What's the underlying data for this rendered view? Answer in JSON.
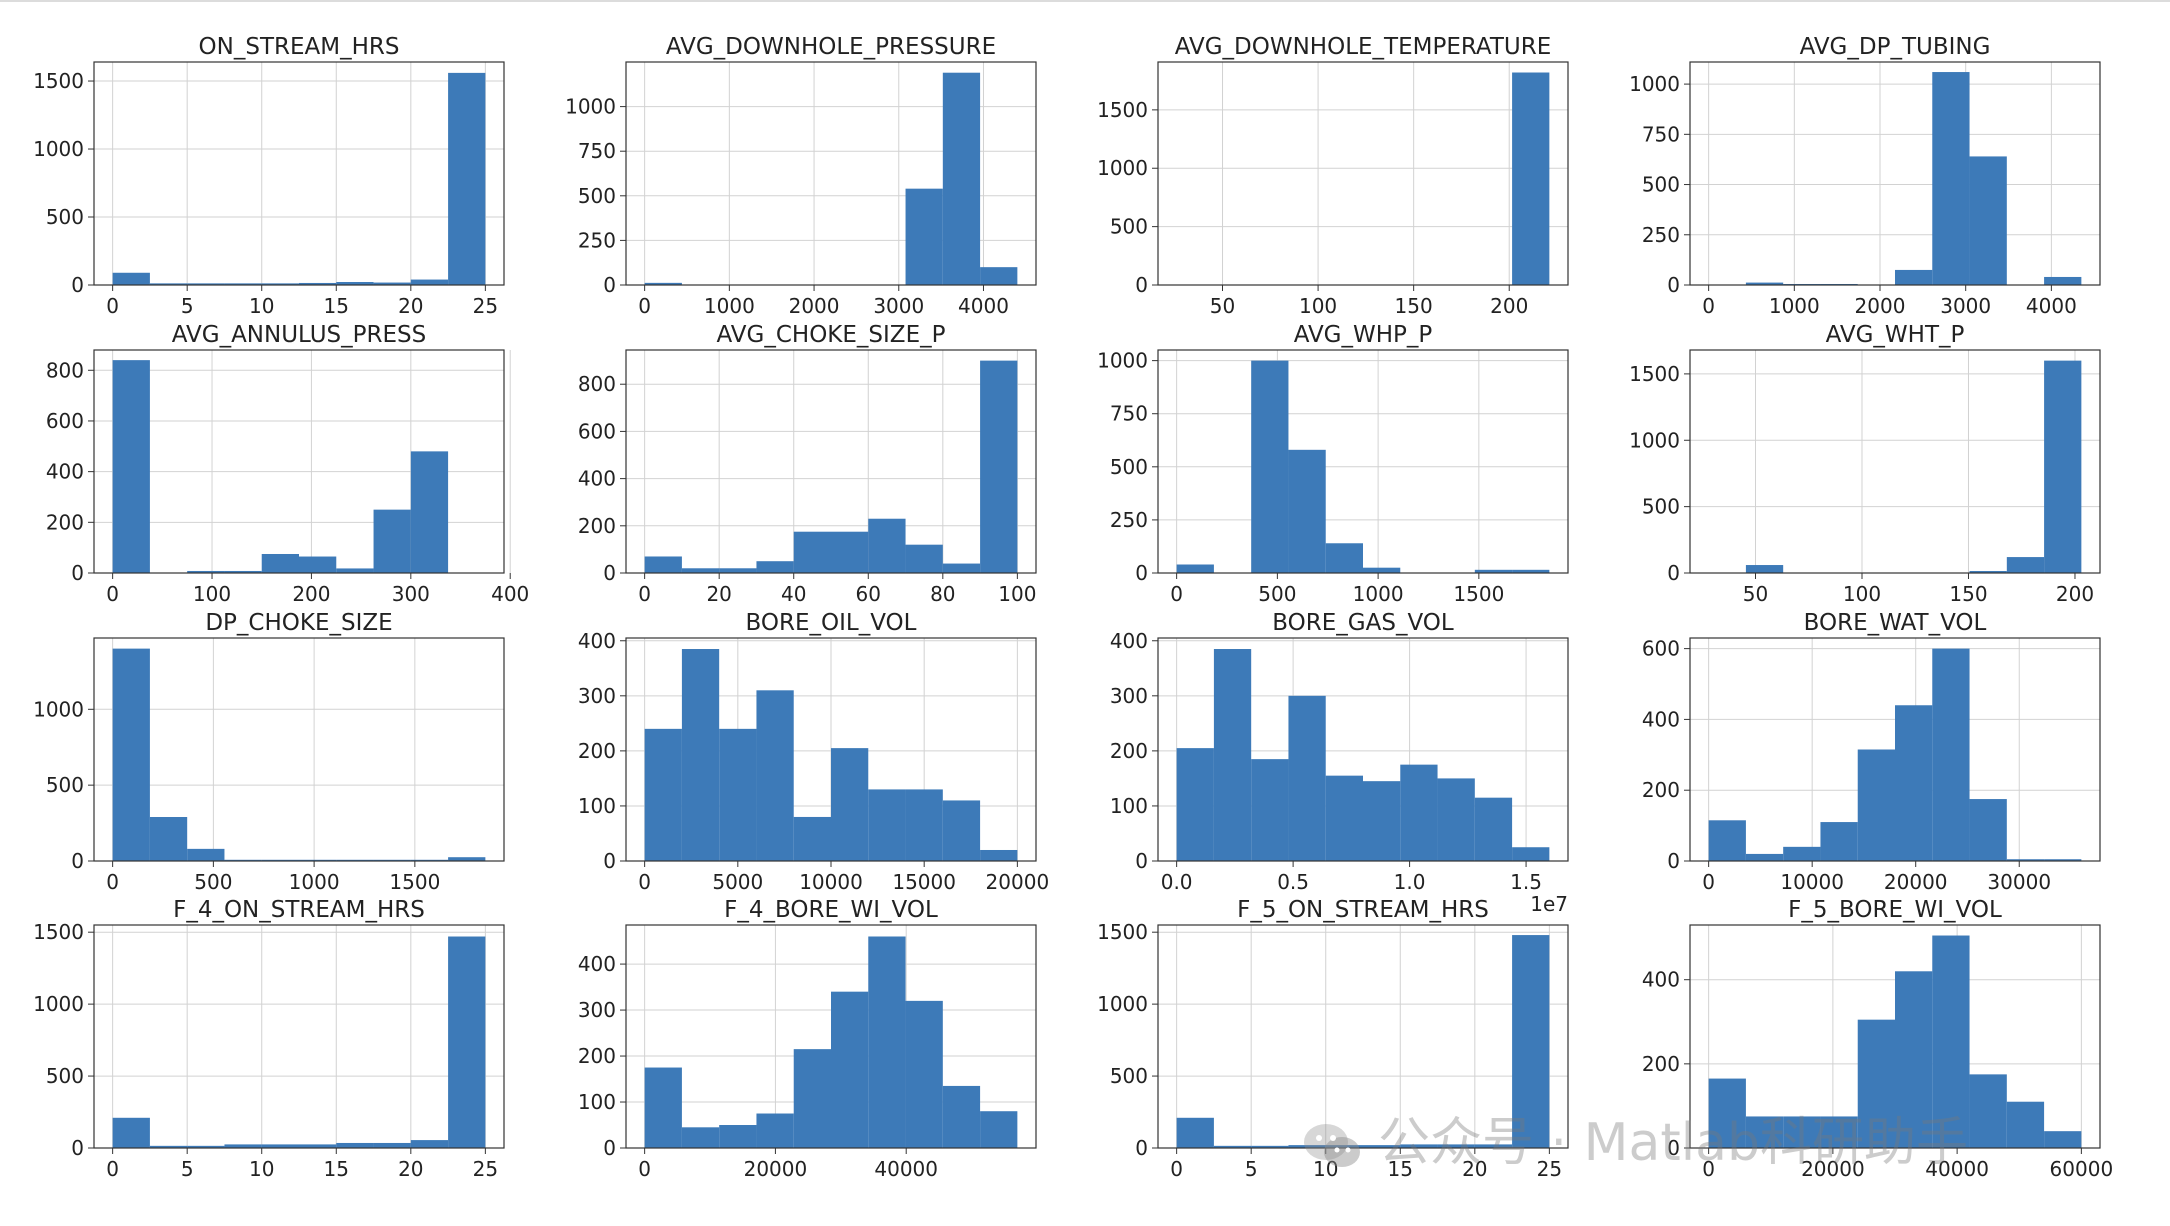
{
  "figure": {
    "watermark": "公众号 · Matlab科研助手"
  },
  "colors": {
    "bar": "#3d7ab8",
    "grid": "#d2d2d2",
    "frame": "#333333",
    "watermark": "#8a8a8a"
  },
  "chart_data": [
    {
      "type": "bar",
      "title": "ON_STREAM_HRS",
      "bins": [
        0,
        2.5,
        5,
        7.5,
        10,
        12.5,
        15,
        17.5,
        20,
        22.5,
        25
      ],
      "counts": [
        90,
        12,
        12,
        12,
        12,
        15,
        22,
        18,
        40,
        1560
      ],
      "xticks": [
        0,
        5,
        10,
        15,
        20,
        25
      ],
      "xticklabels": [
        "0",
        "5",
        "10",
        "15",
        "20",
        "25"
      ],
      "xlim": [
        -1.25,
        26.25
      ],
      "yticks": [
        0,
        500,
        1000,
        1500
      ],
      "yticklabels": [
        "0",
        "500",
        "1000",
        "1500"
      ],
      "ylim": [
        0,
        1640
      ]
    },
    {
      "type": "bar",
      "title": "AVG_DOWNHOLE_PRESSURE",
      "bins": [
        0,
        440,
        880,
        1320,
        1760,
        2200,
        2640,
        3080,
        3520,
        3960,
        4400
      ],
      "counts": [
        12,
        0,
        0,
        0,
        0,
        0,
        0,
        540,
        1190,
        100
      ],
      "xticks": [
        0,
        1000,
        2000,
        3000,
        4000
      ],
      "xticklabels": [
        "0",
        "1000",
        "2000",
        "3000",
        "4000"
      ],
      "xlim": [
        -220,
        4620
      ],
      "yticks": [
        0,
        250,
        500,
        750,
        1000
      ],
      "yticklabels": [
        "0",
        "250",
        "500",
        "750",
        "1000"
      ],
      "ylim": [
        0,
        1250
      ]
    },
    {
      "type": "bar",
      "title": "AVG_DOWNHOLE_TEMPERATURE",
      "bins": [
        26,
        45.5,
        65,
        84.5,
        104,
        123.5,
        143,
        162.5,
        182,
        201.5,
        221
      ],
      "counts": [
        0,
        0,
        0,
        0,
        0,
        0,
        0,
        0,
        0,
        1820
      ],
      "xticks": [
        50,
        100,
        150,
        200
      ],
      "xticklabels": [
        "50",
        "100",
        "150",
        "200"
      ],
      "xlim": [
        16.25,
        230.75
      ],
      "yticks": [
        0,
        500,
        1000,
        1500
      ],
      "yticklabels": [
        "0",
        "500",
        "1000",
        "1500"
      ],
      "ylim": [
        0,
        1910
      ]
    },
    {
      "type": "bar",
      "title": "AVG_DP_TUBING",
      "bins": [
        0,
        435,
        870,
        1305,
        1740,
        2175,
        2610,
        3045,
        3480,
        3915,
        4350
      ],
      "counts": [
        2,
        12,
        5,
        5,
        0,
        75,
        1060,
        640,
        0,
        40
      ],
      "xticks": [
        0,
        1000,
        2000,
        3000,
        4000
      ],
      "xticklabels": [
        "0",
        "1000",
        "2000",
        "3000",
        "4000"
      ],
      "xlim": [
        -217.5,
        4567.5
      ],
      "yticks": [
        0,
        250,
        500,
        750,
        1000
      ],
      "yticklabels": [
        "0",
        "250",
        "500",
        "750",
        "1000"
      ],
      "ylim": [
        0,
        1110
      ]
    },
    {
      "type": "bar",
      "title": "AVG_ANNULUS_PRESS",
      "bins": [
        0,
        37.5,
        75,
        112.5,
        150,
        187.5,
        225,
        262.5,
        300,
        337.5,
        375
      ],
      "counts": [
        840,
        0,
        8,
        8,
        75,
        65,
        18,
        250,
        480,
        0
      ],
      "xticks": [
        0,
        100,
        200,
        300,
        400
      ],
      "xticklabels": [
        "0",
        "100",
        "200",
        "300",
        "400"
      ],
      "xlim": [
        -18.75,
        393.75
      ],
      "yticks": [
        0,
        200,
        400,
        600,
        800
      ],
      "yticklabels": [
        "0",
        "200",
        "400",
        "600",
        "800"
      ],
      "ylim": [
        0,
        880
      ]
    },
    {
      "type": "bar",
      "title": "AVG_CHOKE_SIZE_P",
      "bins": [
        0,
        10,
        20,
        30,
        40,
        50,
        60,
        70,
        80,
        90,
        100
      ],
      "counts": [
        70,
        20,
        20,
        50,
        175,
        175,
        230,
        120,
        40,
        900
      ],
      "xticks": [
        0,
        20,
        40,
        60,
        80,
        100
      ],
      "xticklabels": [
        "0",
        "20",
        "40",
        "60",
        "80",
        "100"
      ],
      "xlim": [
        -5,
        105
      ],
      "yticks": [
        0,
        200,
        400,
        600,
        800
      ],
      "yticklabels": [
        "0",
        "200",
        "400",
        "600",
        "800"
      ],
      "ylim": [
        0,
        945
      ]
    },
    {
      "type": "bar",
      "title": "AVG_WHP_P",
      "bins": [
        0,
        185,
        370,
        555,
        740,
        925,
        1110,
        1295,
        1480,
        1665,
        1850
      ],
      "counts": [
        40,
        0,
        1000,
        580,
        140,
        25,
        0,
        0,
        15,
        15
      ],
      "xticks": [
        0,
        500,
        1000,
        1500
      ],
      "xticklabels": [
        "0",
        "500",
        "1000",
        "1500"
      ],
      "xlim": [
        -92.5,
        1942.5
      ],
      "yticks": [
        0,
        250,
        500,
        750,
        1000
      ],
      "yticklabels": [
        "0",
        "250",
        "500",
        "750",
        "1000"
      ],
      "ylim": [
        0,
        1050
      ]
    },
    {
      "type": "bar",
      "title": "AVG_WHT_P",
      "bins": [
        28,
        45.5,
        63,
        80.5,
        98,
        115.5,
        133,
        150.5,
        168,
        185.5,
        203
      ],
      "counts": [
        0,
        60,
        0,
        0,
        0,
        0,
        0,
        15,
        120,
        1600
      ],
      "xticks": [
        50,
        100,
        150,
        200
      ],
      "xticklabels": [
        "50",
        "100",
        "150",
        "200"
      ],
      "xlim": [
        19.25,
        211.75
      ],
      "yticks": [
        0,
        500,
        1000,
        1500
      ],
      "yticklabels": [
        "0",
        "500",
        "1000",
        "1500"
      ],
      "ylim": [
        0,
        1680
      ]
    },
    {
      "type": "bar",
      "title": "DP_CHOKE_SIZE",
      "bins": [
        0,
        185,
        370,
        555,
        740,
        925,
        1110,
        1295,
        1480,
        1665,
        1850
      ],
      "counts": [
        1400,
        290,
        80,
        8,
        8,
        8,
        8,
        8,
        8,
        25
      ],
      "xticks": [
        0,
        500,
        1000,
        1500
      ],
      "xticklabels": [
        "0",
        "500",
        "1000",
        "1500"
      ],
      "xlim": [
        -92.5,
        1942.5
      ],
      "yticks": [
        0,
        500,
        1000
      ],
      "yticklabels": [
        "0",
        "500",
        "1000"
      ],
      "ylim": [
        0,
        1470
      ]
    },
    {
      "type": "bar",
      "title": "BORE_OIL_VOL",
      "bins": [
        0,
        2000,
        4000,
        6000,
        8000,
        10000,
        12000,
        14000,
        16000,
        18000,
        20000
      ],
      "counts": [
        240,
        385,
        240,
        310,
        80,
        205,
        130,
        130,
        110,
        20
      ],
      "xticks": [
        0,
        5000,
        10000,
        15000,
        20000
      ],
      "xticklabels": [
        "0",
        "5000",
        "10000",
        "15000",
        "20000"
      ],
      "xlim": [
        -1000,
        21000
      ],
      "yticks": [
        0,
        100,
        200,
        300,
        400
      ],
      "yticklabels": [
        "0",
        "100",
        "200",
        "300",
        "400"
      ],
      "ylim": [
        0,
        405
      ]
    },
    {
      "type": "bar",
      "title": "BORE_GAS_VOL",
      "bins": [
        0,
        0.16,
        0.32,
        0.48,
        0.64,
        0.8,
        0.96,
        1.12,
        1.28,
        1.44,
        1.6
      ],
      "counts": [
        205,
        385,
        185,
        300,
        155,
        145,
        175,
        150,
        115,
        25
      ],
      "xticks": [
        0,
        0.5,
        1,
        1.5
      ],
      "xticklabels": [
        "0.0",
        "0.5",
        "1.0",
        "1.5"
      ],
      "xlim": [
        -0.08,
        1.68
      ],
      "yticks": [
        0,
        100,
        200,
        300,
        400
      ],
      "yticklabels": [
        "0",
        "100",
        "200",
        "300",
        "400"
      ],
      "ylim": [
        0,
        405
      ],
      "offset_label": "1e7"
    },
    {
      "type": "bar",
      "title": "BORE_WAT_VOL",
      "bins": [
        0,
        3600,
        7200,
        10800,
        14400,
        18000,
        21600,
        25200,
        28800,
        32400,
        36000
      ],
      "counts": [
        115,
        20,
        40,
        110,
        315,
        440,
        600,
        175,
        5,
        5
      ],
      "xticks": [
        0,
        10000,
        20000,
        30000
      ],
      "xticklabels": [
        "0",
        "10000",
        "20000",
        "30000"
      ],
      "xlim": [
        -1800,
        37800
      ],
      "yticks": [
        0,
        200,
        400,
        600
      ],
      "yticklabels": [
        "0",
        "200",
        "400",
        "600"
      ],
      "ylim": [
        0,
        630
      ]
    },
    {
      "type": "bar",
      "title": "F_4_ON_STREAM_HRS",
      "bins": [
        0,
        2.5,
        5,
        7.5,
        10,
        12.5,
        15,
        17.5,
        20,
        22.5,
        25
      ],
      "counts": [
        210,
        15,
        15,
        25,
        25,
        25,
        35,
        35,
        55,
        1470
      ],
      "xticks": [
        0,
        5,
        10,
        15,
        20,
        25
      ],
      "xticklabels": [
        "0",
        "5",
        "10",
        "15",
        "20",
        "25"
      ],
      "xlim": [
        -1.25,
        26.25
      ],
      "yticks": [
        0,
        500,
        1000,
        1500
      ],
      "yticklabels": [
        "0",
        "500",
        "1000",
        "1500"
      ],
      "ylim": [
        0,
        1550
      ]
    },
    {
      "type": "bar",
      "title": "F_4_BORE_WI_VOL",
      "bins": [
        0,
        5700,
        11400,
        17100,
        22800,
        28500,
        34200,
        39900,
        45600,
        51300,
        57000
      ],
      "counts": [
        175,
        45,
        50,
        75,
        215,
        340,
        460,
        320,
        135,
        80
      ],
      "xticks": [
        0,
        20000,
        40000
      ],
      "xticklabels": [
        "0",
        "20000",
        "40000"
      ],
      "xlim": [
        -2850,
        59850
      ],
      "yticks": [
        0,
        100,
        200,
        300,
        400
      ],
      "yticklabels": [
        "0",
        "100",
        "200",
        "300",
        "400"
      ],
      "ylim": [
        0,
        485
      ]
    },
    {
      "type": "bar",
      "title": "F_5_ON_STREAM_HRS",
      "bins": [
        0,
        2.5,
        5,
        7.5,
        10,
        12.5,
        15,
        17.5,
        20,
        22.5,
        25
      ],
      "counts": [
        210,
        15,
        15,
        20,
        20,
        20,
        25,
        25,
        25,
        1480
      ],
      "xticks": [
        0,
        5,
        10,
        15,
        20,
        25
      ],
      "xticklabels": [
        "0",
        "5",
        "10",
        "15",
        "20",
        "25"
      ],
      "xlim": [
        -1.25,
        26.25
      ],
      "yticks": [
        0,
        500,
        1000,
        1500
      ],
      "yticklabels": [
        "0",
        "500",
        "1000",
        "1500"
      ],
      "ylim": [
        0,
        1550
      ]
    },
    {
      "type": "bar",
      "title": "F_5_BORE_WI_VOL",
      "bins": [
        0,
        6000,
        12000,
        18000,
        24000,
        30000,
        36000,
        42000,
        48000,
        54000,
        60000
      ],
      "counts": [
        165,
        75,
        75,
        75,
        305,
        420,
        505,
        175,
        110,
        40
      ],
      "xticks": [
        0,
        20000,
        40000,
        60000
      ],
      "xticklabels": [
        "0",
        "20000",
        "40000",
        "60000"
      ],
      "xlim": [
        -3000,
        63000
      ],
      "yticks": [
        0,
        200,
        400
      ],
      "yticklabels": [
        "0",
        "200",
        "400"
      ],
      "ylim": [
        0,
        530
      ]
    }
  ]
}
